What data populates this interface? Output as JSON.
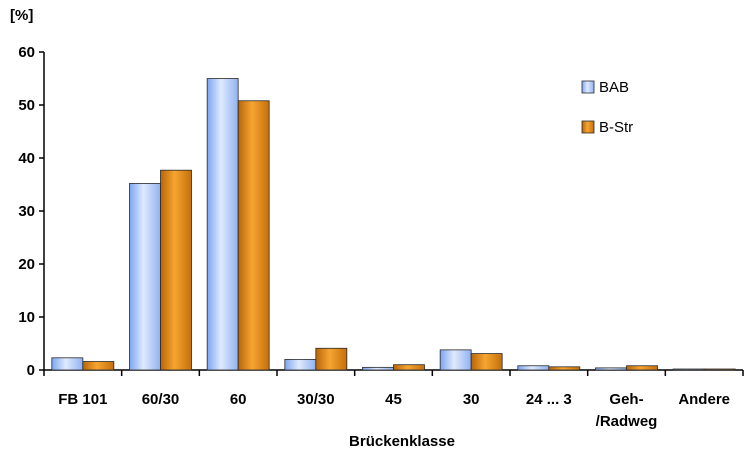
{
  "chart_data": {
    "type": "bar",
    "title": "",
    "ylabel": "[%]",
    "xlabel": "Brückenklasse",
    "ylim": [
      0,
      60
    ],
    "yticks": [
      0,
      10,
      20,
      30,
      40,
      50,
      60
    ],
    "grid": false,
    "legend_position": "top-right",
    "categories": [
      [
        "FB 101"
      ],
      [
        "60/30"
      ],
      [
        "60"
      ],
      [
        "30/30"
      ],
      [
        "45"
      ],
      [
        "30"
      ],
      [
        "24 ... 3"
      ],
      [
        "Geh-",
        "/Radweg"
      ],
      [
        "Andere"
      ]
    ],
    "series": [
      {
        "name": "BAB",
        "color": "#a9c8f7",
        "values": [
          2.3,
          35.2,
          55.0,
          2.0,
          0.5,
          3.8,
          0.8,
          0.4,
          0.1
        ]
      },
      {
        "name": "B-Str",
        "color": "#e08a10",
        "values": [
          1.6,
          37.7,
          50.8,
          4.1,
          1.0,
          3.1,
          0.6,
          0.8,
          0.1
        ]
      }
    ]
  }
}
